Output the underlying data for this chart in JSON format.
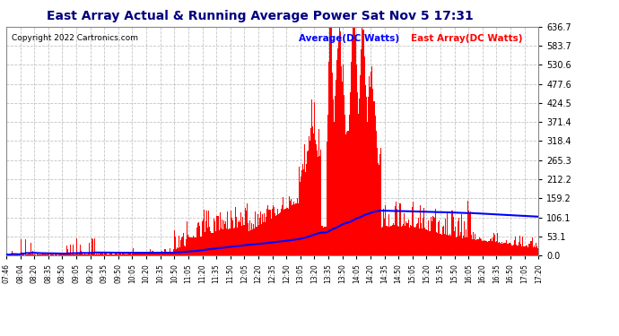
{
  "title": "East Array Actual & Running Average Power Sat Nov 5 17:31",
  "copyright": "Copyright 2022 Cartronics.com",
  "legend_avg": "Average(DC Watts)",
  "legend_east": "East Array(DC Watts)",
  "y_ticks": [
    0.0,
    53.1,
    106.1,
    159.2,
    212.2,
    265.3,
    318.4,
    371.4,
    424.5,
    477.6,
    530.6,
    583.7,
    636.7
  ],
  "x_labels": [
    "07:46",
    "08:04",
    "08:20",
    "08:35",
    "08:50",
    "09:05",
    "09:20",
    "09:35",
    "09:50",
    "10:05",
    "10:20",
    "10:35",
    "10:50",
    "11:05",
    "11:20",
    "11:35",
    "11:50",
    "12:05",
    "12:20",
    "12:35",
    "12:50",
    "13:05",
    "13:20",
    "13:35",
    "13:50",
    "14:05",
    "14:20",
    "14:35",
    "14:50",
    "15:05",
    "15:20",
    "15:35",
    "15:50",
    "16:05",
    "16:20",
    "16:35",
    "16:50",
    "17:05",
    "17:20"
  ],
  "background_color": "#ffffff",
  "plot_bg_color": "#ffffff",
  "grid_color": "#aaaaaa",
  "bar_color": "#ff0000",
  "avg_line_color": "#0000ff",
  "title_color": "#000080",
  "y_max": 636.7,
  "y_min": 0.0
}
